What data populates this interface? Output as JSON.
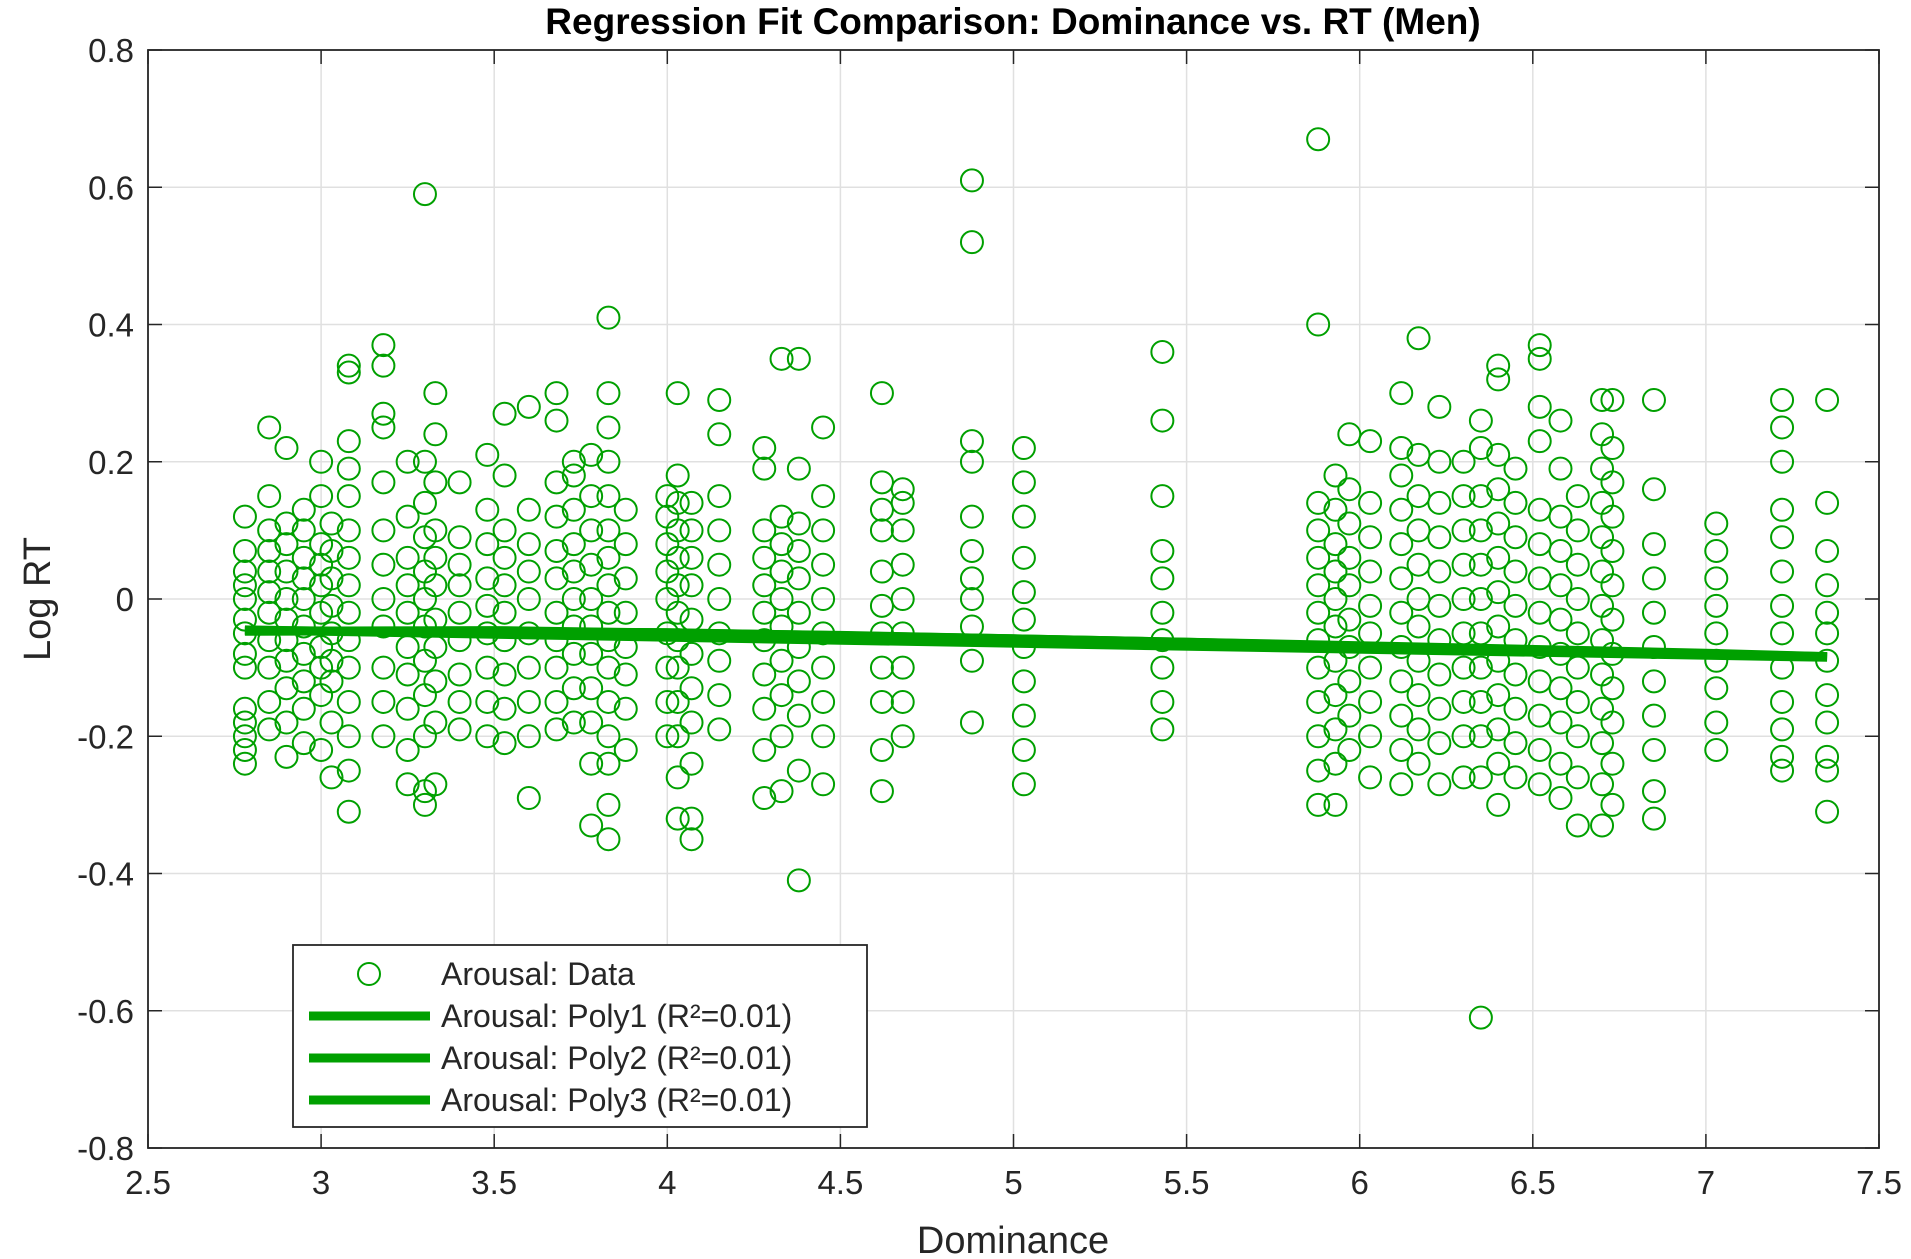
{
  "chart_data": {
    "type": "scatter",
    "title": "Regression Fit Comparison: Dominance vs. RT (Men)",
    "xlabel": "Dominance",
    "ylabel": "Log RT",
    "xlim": [
      2.5,
      7.5
    ],
    "ylim": [
      -0.8,
      0.8
    ],
    "xticks": [
      "2.5",
      "3",
      "3.5",
      "4",
      "4.5",
      "5",
      "5.5",
      "6",
      "6.5",
      "7",
      "7.5"
    ],
    "yticks": [
      "-0.8",
      "-0.6",
      "-0.4",
      "-0.2",
      "0",
      "0.2",
      "0.4",
      "0.6",
      "0.8"
    ],
    "grid": true,
    "legend_position": "bottom-left",
    "colors": {
      "series": "#00a000",
      "axis": "#262626",
      "grid": "#e0e0e0"
    },
    "marker": "open-circle",
    "columns": [
      {
        "x": 2.78,
        "ys": [
          -0.24,
          -0.22,
          -0.2,
          -0.18,
          -0.16,
          -0.1,
          -0.08,
          -0.05,
          -0.03,
          0.0,
          0.02,
          0.04,
          0.07,
          0.12
        ]
      },
      {
        "x": 2.85,
        "ys": [
          -0.19,
          -0.15,
          -0.1,
          -0.06,
          -0.02,
          0.01,
          0.04,
          0.07,
          0.1,
          0.15,
          0.25
        ]
      },
      {
        "x": 2.9,
        "ys": [
          -0.23,
          -0.18,
          -0.13,
          -0.09,
          -0.06,
          -0.03,
          0.0,
          0.04,
          0.08,
          0.11,
          0.22
        ]
      },
      {
        "x": 2.95,
        "ys": [
          -0.21,
          -0.16,
          -0.12,
          -0.08,
          -0.04,
          0.0,
          0.03,
          0.06,
          0.1,
          0.13
        ]
      },
      {
        "x": 3.0,
        "ys": [
          -0.22,
          -0.14,
          -0.1,
          -0.07,
          -0.02,
          0.02,
          0.05,
          0.08,
          0.15,
          0.2
        ]
      },
      {
        "x": 3.03,
        "ys": [
          -0.26,
          -0.18,
          -0.12,
          -0.09,
          -0.05,
          -0.01,
          0.03,
          0.07,
          0.11
        ]
      },
      {
        "x": 3.08,
        "ys": [
          -0.31,
          -0.25,
          -0.2,
          -0.15,
          -0.1,
          -0.06,
          -0.02,
          0.02,
          0.06,
          0.1,
          0.15,
          0.19,
          0.23,
          0.33,
          0.34
        ]
      },
      {
        "x": 3.18,
        "ys": [
          -0.2,
          -0.15,
          -0.1,
          -0.04,
          0.0,
          0.05,
          0.1,
          0.17,
          0.25,
          0.27,
          0.34,
          0.37
        ]
      },
      {
        "x": 3.25,
        "ys": [
          -0.27,
          -0.22,
          -0.16,
          -0.11,
          -0.07,
          -0.02,
          0.02,
          0.06,
          0.12,
          0.2
        ]
      },
      {
        "x": 3.3,
        "ys": [
          -0.3,
          -0.28,
          -0.2,
          -0.14,
          -0.09,
          -0.04,
          0.0,
          0.04,
          0.09,
          0.14,
          0.2,
          0.59
        ]
      },
      {
        "x": 3.33,
        "ys": [
          -0.27,
          -0.18,
          -0.12,
          -0.07,
          -0.03,
          0.02,
          0.06,
          0.1,
          0.17,
          0.24,
          0.3
        ]
      },
      {
        "x": 3.4,
        "ys": [
          -0.19,
          -0.15,
          -0.11,
          -0.06,
          -0.02,
          0.02,
          0.05,
          0.09,
          0.17
        ]
      },
      {
        "x": 3.48,
        "ys": [
          -0.2,
          -0.15,
          -0.1,
          -0.05,
          -0.01,
          0.03,
          0.08,
          0.13,
          0.21
        ]
      },
      {
        "x": 3.53,
        "ys": [
          -0.21,
          -0.16,
          -0.11,
          -0.06,
          -0.02,
          0.02,
          0.06,
          0.1,
          0.18,
          0.27
        ]
      },
      {
        "x": 3.6,
        "ys": [
          -0.29,
          -0.2,
          -0.15,
          -0.1,
          -0.05,
          0.0,
          0.04,
          0.08,
          0.13,
          0.28
        ]
      },
      {
        "x": 3.68,
        "ys": [
          -0.19,
          -0.15,
          -0.1,
          -0.06,
          -0.02,
          0.03,
          0.07,
          0.12,
          0.17,
          0.26,
          0.3
        ]
      },
      {
        "x": 3.73,
        "ys": [
          -0.18,
          -0.13,
          -0.08,
          -0.04,
          0.0,
          0.04,
          0.08,
          0.13,
          0.18,
          0.2
        ]
      },
      {
        "x": 3.78,
        "ys": [
          -0.33,
          -0.24,
          -0.18,
          -0.13,
          -0.08,
          -0.04,
          0.0,
          0.05,
          0.1,
          0.15,
          0.21
        ]
      },
      {
        "x": 3.83,
        "ys": [
          -0.35,
          -0.3,
          -0.24,
          -0.2,
          -0.15,
          -0.1,
          -0.06,
          -0.02,
          0.02,
          0.06,
          0.1,
          0.15,
          0.2,
          0.25,
          0.3,
          0.41
        ]
      },
      {
        "x": 3.88,
        "ys": [
          -0.22,
          -0.16,
          -0.11,
          -0.07,
          -0.02,
          0.03,
          0.08,
          0.13
        ]
      },
      {
        "x": 4.0,
        "ys": [
          -0.2,
          -0.15,
          -0.1,
          -0.05,
          0.0,
          0.04,
          0.08,
          0.12,
          0.15
        ]
      },
      {
        "x": 4.03,
        "ys": [
          -0.32,
          -0.26,
          -0.2,
          -0.15,
          -0.1,
          -0.06,
          -0.02,
          0.02,
          0.06,
          0.1,
          0.14,
          0.18,
          0.3
        ]
      },
      {
        "x": 4.07,
        "ys": [
          -0.35,
          -0.32,
          -0.24,
          -0.18,
          -0.13,
          -0.08,
          -0.03,
          0.02,
          0.06,
          0.1,
          0.14
        ]
      },
      {
        "x": 4.15,
        "ys": [
          -0.19,
          -0.14,
          -0.09,
          -0.05,
          0.0,
          0.05,
          0.1,
          0.15,
          0.24,
          0.29
        ]
      },
      {
        "x": 4.28,
        "ys": [
          -0.29,
          -0.22,
          -0.16,
          -0.11,
          -0.06,
          -0.02,
          0.02,
          0.06,
          0.1,
          0.19,
          0.22
        ]
      },
      {
        "x": 4.33,
        "ys": [
          -0.28,
          -0.2,
          -0.14,
          -0.09,
          -0.04,
          0.0,
          0.04,
          0.08,
          0.12,
          0.35
        ]
      },
      {
        "x": 4.38,
        "ys": [
          -0.41,
          -0.25,
          -0.17,
          -0.12,
          -0.07,
          -0.02,
          0.03,
          0.07,
          0.11,
          0.19,
          0.35
        ]
      },
      {
        "x": 4.45,
        "ys": [
          -0.27,
          -0.2,
          -0.15,
          -0.1,
          -0.05,
          0.0,
          0.05,
          0.1,
          0.15,
          0.25
        ]
      },
      {
        "x": 4.62,
        "ys": [
          -0.28,
          -0.22,
          -0.15,
          -0.1,
          -0.05,
          -0.01,
          0.04,
          0.1,
          0.13,
          0.17,
          0.3
        ]
      },
      {
        "x": 4.68,
        "ys": [
          -0.2,
          -0.15,
          -0.1,
          -0.05,
          0.0,
          0.05,
          0.1,
          0.14,
          0.16
        ]
      },
      {
        "x": 4.88,
        "ys": [
          -0.18,
          -0.09,
          -0.04,
          0.0,
          0.03,
          0.07,
          0.12,
          0.2,
          0.23,
          0.52,
          0.61
        ]
      },
      {
        "x": 5.03,
        "ys": [
          -0.27,
          -0.22,
          -0.17,
          -0.12,
          -0.07,
          -0.03,
          0.01,
          0.06,
          0.12,
          0.17,
          0.22
        ]
      },
      {
        "x": 5.43,
        "ys": [
          -0.19,
          -0.15,
          -0.1,
          -0.06,
          -0.02,
          0.03,
          0.07,
          0.15,
          0.26,
          0.36
        ]
      },
      {
        "x": 5.88,
        "ys": [
          -0.3,
          -0.25,
          -0.2,
          -0.15,
          -0.1,
          -0.06,
          -0.02,
          0.02,
          0.06,
          0.1,
          0.14,
          0.4,
          0.67
        ]
      },
      {
        "x": 5.93,
        "ys": [
          -0.3,
          -0.24,
          -0.19,
          -0.14,
          -0.09,
          -0.04,
          0.0,
          0.04,
          0.08,
          0.13,
          0.18
        ]
      },
      {
        "x": 5.97,
        "ys": [
          -0.22,
          -0.17,
          -0.12,
          -0.07,
          -0.03,
          0.02,
          0.06,
          0.11,
          0.16,
          0.24
        ]
      },
      {
        "x": 6.03,
        "ys": [
          -0.26,
          -0.2,
          -0.15,
          -0.1,
          -0.05,
          -0.01,
          0.04,
          0.09,
          0.14,
          0.23
        ]
      },
      {
        "x": 6.12,
        "ys": [
          -0.27,
          -0.22,
          -0.17,
          -0.12,
          -0.07,
          -0.02,
          0.03,
          0.08,
          0.13,
          0.18,
          0.22,
          0.3
        ]
      },
      {
        "x": 6.17,
        "ys": [
          -0.24,
          -0.19,
          -0.14,
          -0.09,
          -0.04,
          0.0,
          0.05,
          0.1,
          0.15,
          0.21,
          0.38
        ]
      },
      {
        "x": 6.23,
        "ys": [
          -0.27,
          -0.21,
          -0.16,
          -0.11,
          -0.06,
          -0.01,
          0.04,
          0.09,
          0.14,
          0.2,
          0.28
        ]
      },
      {
        "x": 6.3,
        "ys": [
          -0.26,
          -0.2,
          -0.15,
          -0.1,
          -0.05,
          0.0,
          0.05,
          0.1,
          0.15,
          0.2
        ]
      },
      {
        "x": 6.35,
        "ys": [
          -0.61,
          -0.26,
          -0.2,
          -0.15,
          -0.1,
          -0.05,
          0.0,
          0.05,
          0.1,
          0.15,
          0.22,
          0.26
        ]
      },
      {
        "x": 6.4,
        "ys": [
          -0.3,
          -0.24,
          -0.19,
          -0.14,
          -0.09,
          -0.04,
          0.01,
          0.06,
          0.11,
          0.16,
          0.21,
          0.32,
          0.34
        ]
      },
      {
        "x": 6.45,
        "ys": [
          -0.26,
          -0.21,
          -0.16,
          -0.11,
          -0.06,
          -0.01,
          0.04,
          0.09,
          0.14,
          0.19
        ]
      },
      {
        "x": 6.52,
        "ys": [
          -0.27,
          -0.22,
          -0.17,
          -0.12,
          -0.07,
          -0.02,
          0.03,
          0.08,
          0.13,
          0.23,
          0.28,
          0.35,
          0.37
        ]
      },
      {
        "x": 6.58,
        "ys": [
          -0.29,
          -0.24,
          -0.18,
          -0.13,
          -0.08,
          -0.03,
          0.02,
          0.07,
          0.12,
          0.19,
          0.26
        ]
      },
      {
        "x": 6.63,
        "ys": [
          -0.33,
          -0.26,
          -0.2,
          -0.15,
          -0.1,
          -0.05,
          0.0,
          0.05,
          0.1,
          0.15
        ]
      },
      {
        "x": 6.7,
        "ys": [
          -0.33,
          -0.27,
          -0.21,
          -0.16,
          -0.11,
          -0.06,
          -0.01,
          0.04,
          0.09,
          0.14,
          0.19,
          0.24,
          0.29
        ]
      },
      {
        "x": 6.73,
        "ys": [
          -0.3,
          -0.24,
          -0.18,
          -0.13,
          -0.08,
          -0.03,
          0.02,
          0.07,
          0.12,
          0.17,
          0.22,
          0.29
        ]
      },
      {
        "x": 6.85,
        "ys": [
          -0.32,
          -0.28,
          -0.22,
          -0.17,
          -0.12,
          -0.07,
          -0.02,
          0.03,
          0.08,
          0.16,
          0.29
        ]
      },
      {
        "x": 7.03,
        "ys": [
          -0.22,
          -0.18,
          -0.13,
          -0.09,
          -0.05,
          -0.01,
          0.03,
          0.07,
          0.11
        ]
      },
      {
        "x": 7.22,
        "ys": [
          -0.25,
          -0.23,
          -0.19,
          -0.15,
          -0.1,
          -0.05,
          -0.01,
          0.04,
          0.09,
          0.13,
          0.2,
          0.25,
          0.29
        ]
      },
      {
        "x": 7.35,
        "ys": [
          -0.31,
          -0.25,
          -0.23,
          -0.18,
          -0.14,
          -0.09,
          -0.05,
          -0.02,
          0.02,
          0.07,
          0.14,
          0.29
        ]
      }
    ],
    "fit_lines": [
      {
        "name": "Arousal: Poly1 (R²=0.01)",
        "x": [
          2.78,
          7.35
        ],
        "y": [
          -0.045,
          -0.085
        ]
      },
      {
        "name": "Arousal: Poly2 (R²=0.01)",
        "x": [
          2.78,
          4.0,
          5.0,
          6.0,
          7.0,
          7.35
        ],
        "y": [
          -0.046,
          -0.049,
          -0.058,
          -0.068,
          -0.079,
          -0.084
        ]
      },
      {
        "name": "Arousal: Poly3 (R²=0.01)",
        "x": [
          2.78,
          3.5,
          4.5,
          5.5,
          6.5,
          7.35
        ],
        "y": [
          -0.047,
          -0.046,
          -0.053,
          -0.063,
          -0.075,
          -0.084
        ]
      }
    ],
    "legend": [
      {
        "label": "Arousal: Data",
        "kind": "marker"
      },
      {
        "label": "Arousal: Poly1 (R²=0.01)",
        "kind": "line"
      },
      {
        "label": "Arousal: Poly2 (R²=0.01)",
        "kind": "line"
      },
      {
        "label": "Arousal: Poly3 (R²=0.01)",
        "kind": "line"
      }
    ]
  }
}
